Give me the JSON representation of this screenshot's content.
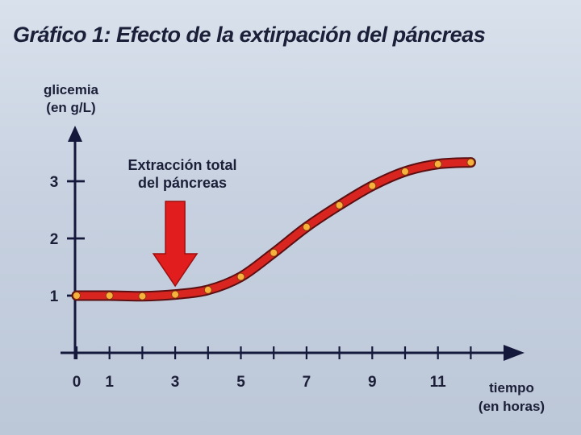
{
  "chart_data": {
    "type": "line",
    "title": "Gráfico 1: Efecto de la extirpación del páncreas",
    "ylabel": [
      "glicemia",
      "(en g/L)"
    ],
    "xlabel": [
      "tiempo",
      "(en horas)"
    ],
    "x_ticks": [
      "0",
      "1",
      "3",
      "5",
      "7",
      "9",
      "11"
    ],
    "y_ticks": [
      "1",
      "2",
      "3"
    ],
    "xlim": [
      -0.3,
      13.5
    ],
    "ylim": [
      0,
      4.5
    ],
    "annotation": {
      "text": [
        "Extracción total",
        "del páncreas"
      ],
      "x": 3,
      "y": 1.0
    },
    "points": [
      {
        "x": 0,
        "y": 1.0
      },
      {
        "x": 1,
        "y": 1.0
      },
      {
        "x": 2,
        "y": 0.99
      },
      {
        "x": 3,
        "y": 1.02
      },
      {
        "x": 4,
        "y": 1.1
      },
      {
        "x": 5,
        "y": 1.33
      },
      {
        "x": 6,
        "y": 1.75
      },
      {
        "x": 7,
        "y": 2.2
      },
      {
        "x": 8,
        "y": 2.58
      },
      {
        "x": 9,
        "y": 2.92
      },
      {
        "x": 10,
        "y": 3.17
      },
      {
        "x": 11,
        "y": 3.3
      },
      {
        "x": 12,
        "y": 3.33
      }
    ],
    "colors": {
      "line": "#d8251f",
      "marker": "#f6b23c",
      "axis": "#14183a",
      "arrow": "#e11d1d"
    }
  }
}
